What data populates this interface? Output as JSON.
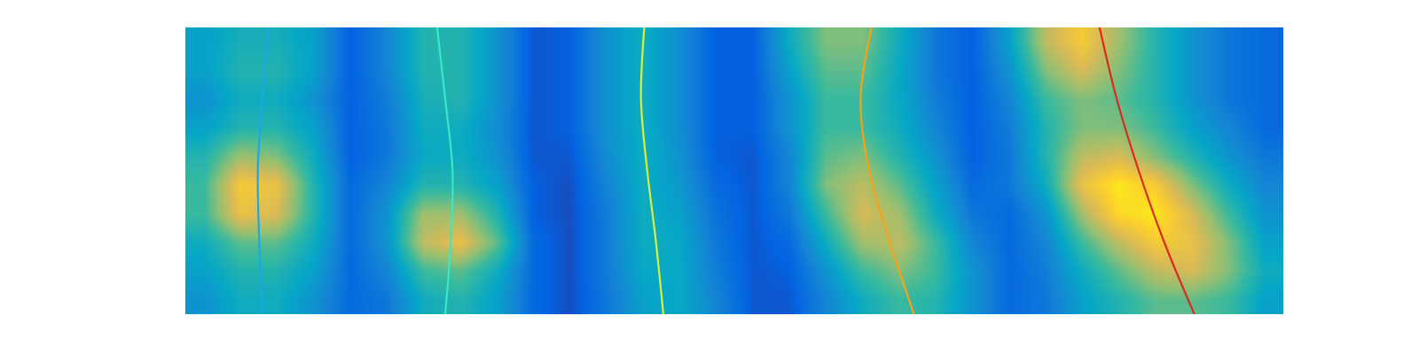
{
  "chart_data": {
    "type": "heatmap",
    "xlim": [
      0,
      30
    ],
    "ylim": [
      0,
      10
    ],
    "tick_labels": false,
    "heatmap": {
      "x": [
        0.5,
        1.5,
        2.5,
        3.5,
        4.5,
        5.5,
        6.5,
        7.5,
        8.5,
        9.5,
        10.5,
        11.5,
        12.5,
        13.5,
        14.5,
        15.5,
        16.5,
        17.5,
        18.5,
        19.5,
        20.5,
        21.5,
        22.5,
        23.5,
        24.5,
        25.5,
        26.5,
        27.5,
        28.5,
        29.5
      ],
      "y": [
        0.5,
        1.5,
        2.5,
        3.5,
        4.5,
        5.5,
        6.5,
        7.5,
        8.5,
        9.5
      ],
      "zlim": [
        0,
        1
      ],
      "z": [
        [
          0.3,
          0.4,
          0.4,
          0.3,
          0.15,
          0.2,
          0.4,
          0.45,
          0.35,
          0.15,
          0.08,
          0.2,
          0.35,
          0.38,
          0.25,
          0.1,
          0.1,
          0.25,
          0.4,
          0.5,
          0.45,
          0.3,
          0.15,
          0.2,
          0.35,
          0.45,
          0.55,
          0.55,
          0.5,
          0.35
        ],
        [
          0.35,
          0.45,
          0.45,
          0.35,
          0.15,
          0.25,
          0.5,
          0.55,
          0.4,
          0.15,
          0.08,
          0.22,
          0.38,
          0.38,
          0.22,
          0.1,
          0.12,
          0.3,
          0.5,
          0.6,
          0.5,
          0.3,
          0.15,
          0.22,
          0.4,
          0.55,
          0.7,
          0.75,
          0.6,
          0.4
        ],
        [
          0.4,
          0.55,
          0.55,
          0.4,
          0.15,
          0.3,
          0.7,
          0.8,
          0.55,
          0.15,
          0.08,
          0.22,
          0.4,
          0.38,
          0.2,
          0.1,
          0.15,
          0.4,
          0.65,
          0.7,
          0.5,
          0.25,
          0.15,
          0.25,
          0.5,
          0.7,
          0.85,
          0.8,
          0.6,
          0.35
        ],
        [
          0.5,
          0.8,
          0.75,
          0.45,
          0.15,
          0.3,
          0.65,
          0.65,
          0.45,
          0.12,
          0.08,
          0.22,
          0.4,
          0.35,
          0.18,
          0.1,
          0.2,
          0.5,
          0.75,
          0.65,
          0.4,
          0.2,
          0.15,
          0.3,
          0.65,
          0.9,
          0.95,
          0.75,
          0.5,
          0.3
        ],
        [
          0.5,
          0.85,
          0.8,
          0.45,
          0.15,
          0.25,
          0.45,
          0.45,
          0.35,
          0.12,
          0.08,
          0.25,
          0.4,
          0.32,
          0.15,
          0.1,
          0.25,
          0.6,
          0.7,
          0.55,
          0.35,
          0.15,
          0.2,
          0.4,
          0.8,
          0.95,
          0.85,
          0.6,
          0.4,
          0.25
        ],
        [
          0.45,
          0.65,
          0.6,
          0.4,
          0.12,
          0.2,
          0.38,
          0.4,
          0.3,
          0.1,
          0.1,
          0.28,
          0.4,
          0.3,
          0.12,
          0.1,
          0.25,
          0.55,
          0.6,
          0.45,
          0.3,
          0.12,
          0.2,
          0.45,
          0.7,
          0.75,
          0.6,
          0.45,
          0.3,
          0.2
        ],
        [
          0.35,
          0.45,
          0.45,
          0.35,
          0.12,
          0.2,
          0.4,
          0.4,
          0.28,
          0.1,
          0.12,
          0.3,
          0.4,
          0.28,
          0.12,
          0.12,
          0.3,
          0.5,
          0.5,
          0.4,
          0.25,
          0.12,
          0.22,
          0.45,
          0.6,
          0.6,
          0.5,
          0.35,
          0.25,
          0.15
        ],
        [
          0.3,
          0.4,
          0.4,
          0.3,
          0.12,
          0.22,
          0.42,
          0.45,
          0.3,
          0.1,
          0.12,
          0.3,
          0.4,
          0.28,
          0.12,
          0.12,
          0.3,
          0.5,
          0.5,
          0.38,
          0.22,
          0.12,
          0.25,
          0.5,
          0.6,
          0.55,
          0.45,
          0.3,
          0.2,
          0.15
        ],
        [
          0.35,
          0.45,
          0.45,
          0.35,
          0.12,
          0.25,
          0.45,
          0.45,
          0.3,
          0.1,
          0.12,
          0.3,
          0.4,
          0.28,
          0.12,
          0.12,
          0.35,
          0.55,
          0.55,
          0.38,
          0.2,
          0.12,
          0.3,
          0.6,
          0.75,
          0.6,
          0.45,
          0.3,
          0.2,
          0.15
        ],
        [
          0.35,
          0.42,
          0.42,
          0.35,
          0.12,
          0.25,
          0.45,
          0.45,
          0.3,
          0.1,
          0.12,
          0.3,
          0.4,
          0.28,
          0.12,
          0.12,
          0.4,
          0.6,
          0.6,
          0.4,
          0.2,
          0.12,
          0.35,
          0.7,
          0.85,
          0.65,
          0.45,
          0.3,
          0.2,
          0.15
        ]
      ]
    },
    "series": [
      {
        "type": "line",
        "color": "#1aa8e8",
        "x": [
          2.1,
          2.02,
          1.98,
          2.1,
          2.28
        ],
        "y": [
          0,
          2.5,
          5,
          7.5,
          10
        ]
      },
      {
        "type": "line",
        "color": "#38e8c8",
        "x": [
          7.1,
          7.25,
          7.3,
          7.1,
          6.88
        ],
        "y": [
          0,
          2.5,
          5,
          7.5,
          10
        ]
      },
      {
        "type": "line",
        "color": "#d6f03c",
        "x": [
          13.06,
          12.86,
          12.62,
          12.45,
          12.54
        ],
        "y": [
          0,
          2.5,
          5,
          7.5,
          10
        ]
      },
      {
        "type": "line",
        "color": "#f7a11a",
        "x": [
          19.91,
          19.25,
          18.68,
          18.45,
          18.75
        ],
        "y": [
          0,
          2.5,
          5,
          7.5,
          10
        ]
      },
      {
        "type": "line",
        "color": "#d92b1f",
        "x": [
          27.57,
          26.75,
          26.05,
          25.45,
          24.98
        ],
        "y": [
          0,
          2.5,
          5,
          7.5,
          10
        ]
      }
    ]
  }
}
